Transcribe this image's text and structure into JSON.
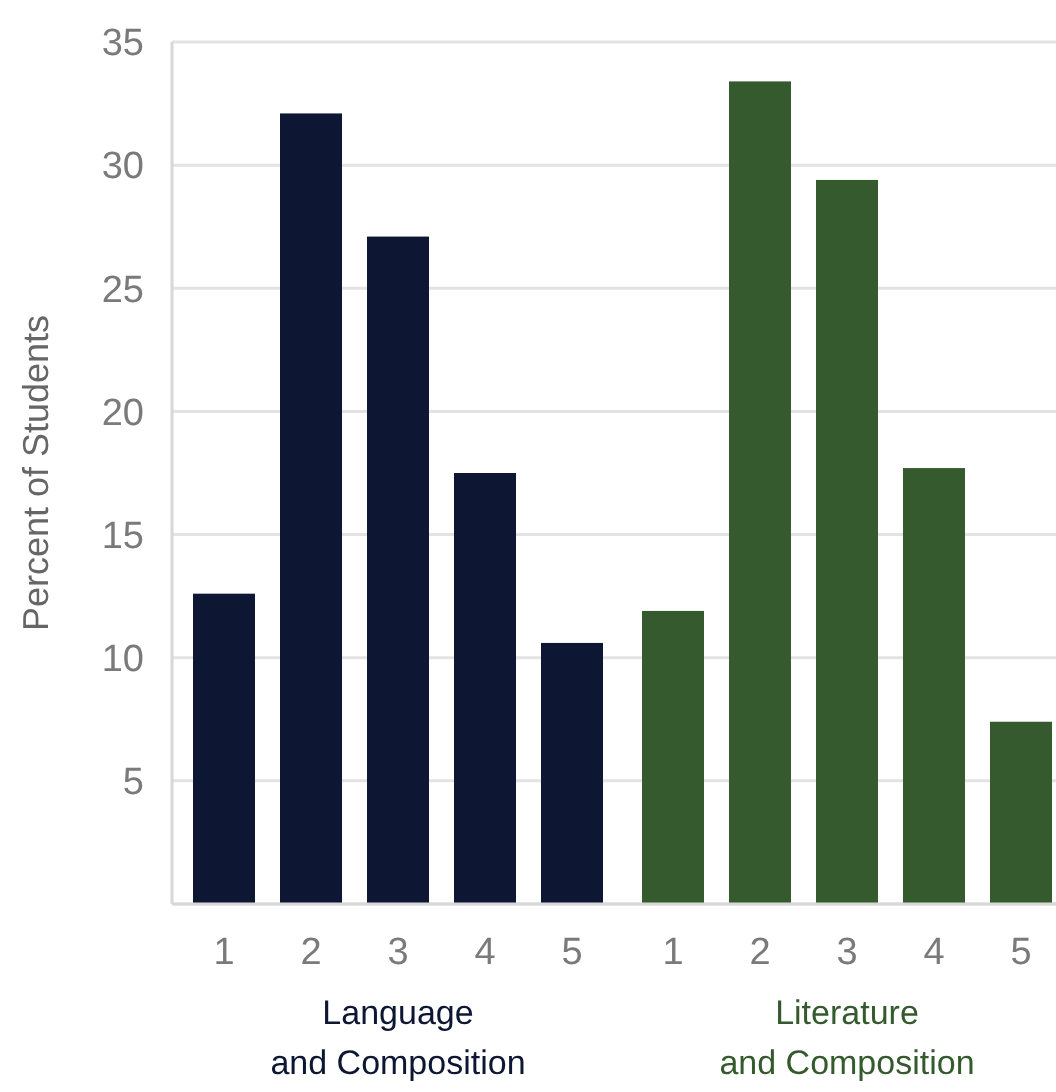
{
  "chart_data": {
    "type": "bar",
    "ylabel": "Percent of Students",
    "categories": [
      "1",
      "2",
      "3",
      "4",
      "5",
      "1",
      "2",
      "3",
      "4",
      "5"
    ],
    "series": [
      {
        "name": "Language and Composition",
        "color": "#0d1733",
        "values": [
          12.6,
          32.1,
          27.1,
          17.5,
          10.6,
          null,
          null,
          null,
          null,
          null
        ]
      },
      {
        "name": "Literature and Composition",
        "color": "#345a2d",
        "values": [
          null,
          null,
          null,
          null,
          null,
          11.9,
          33.4,
          29.4,
          17.7,
          7.4
        ]
      }
    ],
    "ylim": [
      0,
      35
    ],
    "yticks": [
      {
        "value": 0,
        "label": null
      },
      5,
      10,
      15,
      20,
      25,
      30,
      35
    ],
    "grid": "y",
    "legend": "bottom"
  }
}
